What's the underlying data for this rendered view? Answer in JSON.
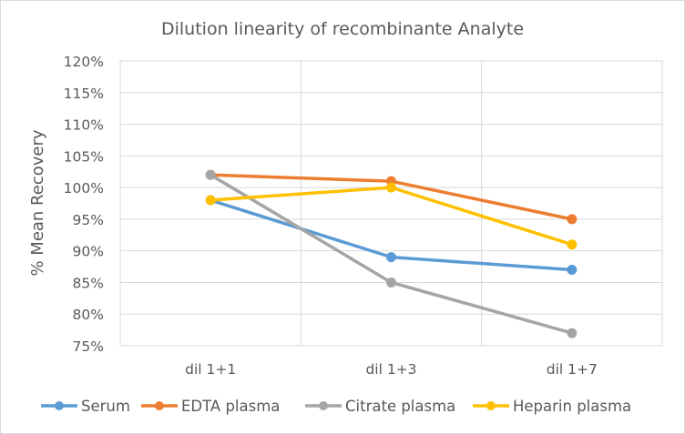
{
  "chart_data": {
    "type": "line",
    "title": "Dilution linearity of recombinante Analyte",
    "xlabel": "",
    "ylabel": "% Mean Recovery",
    "categories": [
      "dil 1+1",
      "dil 1+3",
      "dil 1+7"
    ],
    "ylim": [
      75,
      120
    ],
    "ytick_step": 5,
    "ytick_suffix": "%",
    "grid": "both",
    "legend_position": "bottom",
    "series": [
      {
        "name": "Serum",
        "color": "#5b9bd5",
        "values": [
          98,
          89,
          87
        ]
      },
      {
        "name": "EDTA plasma",
        "color": "#ed7d31",
        "values": [
          102,
          101,
          95
        ]
      },
      {
        "name": "Citrate plasma",
        "color": "#a5a5a5",
        "values": [
          102,
          85,
          77
        ]
      },
      {
        "name": "Heparin plasma",
        "color": "#ffc000",
        "values": [
          98,
          100,
          91
        ]
      }
    ]
  }
}
